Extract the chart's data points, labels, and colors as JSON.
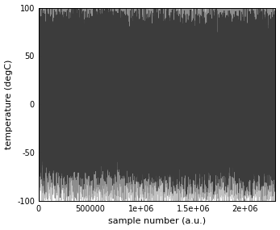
{
  "xlim": [
    0,
    2300000
  ],
  "ylim": [
    -100,
    100
  ],
  "xlabel": "sample number (a.u.)",
  "ylabel": "temperature (degC)",
  "yticks": [
    -100,
    -50,
    0,
    50,
    100
  ],
  "xtick_labels": [
    "0",
    "500000",
    "1e+06",
    "1.5e+06",
    "2e+06"
  ],
  "xtick_positions": [
    0,
    500000,
    1000000,
    1500000,
    2000000
  ],
  "n_samples": 2300000,
  "background_color": "#ffffff",
  "series": [
    {
      "color": "#bbbbbb",
      "base_mean": 14,
      "noise_scale": 6,
      "spike_prob": 0.003,
      "spike_scale": 90,
      "lw": 0.4
    },
    {
      "color": "#888888",
      "base_mean": 12,
      "noise_scale": 4,
      "spike_prob": 0.002,
      "spike_scale": 80,
      "lw": 0.4
    },
    {
      "color": "#333333",
      "base_mean": 10,
      "noise_scale": 3,
      "spike_prob": 0.0015,
      "spike_scale": 70,
      "lw": 0.5
    }
  ],
  "figsize": [
    3.47,
    2.85
  ],
  "dpi": 100
}
